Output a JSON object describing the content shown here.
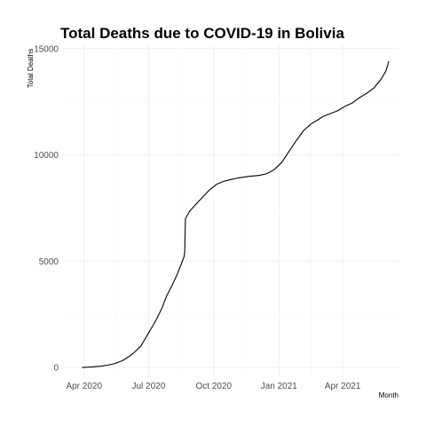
{
  "chart_data": {
    "type": "line",
    "title": "Total Deaths due to COVID-19 in Bolivia",
    "xlabel": "Month",
    "ylabel": "Total Deaths",
    "x_axis_type": "date",
    "xlim": [
      "2020-03-01",
      "2021-06-20"
    ],
    "ylim": [
      -500,
      15200
    ],
    "x_ticks": [
      {
        "date": "2020-04-01",
        "label": "Apr 2020"
      },
      {
        "date": "2020-07-01",
        "label": "Jul 2020"
      },
      {
        "date": "2020-10-01",
        "label": "Oct 2020"
      },
      {
        "date": "2021-01-01",
        "label": "Jan 2021"
      },
      {
        "date": "2021-04-01",
        "label": "Apr 2021"
      }
    ],
    "y_ticks": [
      0,
      5000,
      10000,
      15000
    ],
    "grid": true,
    "series": [
      {
        "color": "#000000",
        "points": [
          [
            "2020-03-29",
            0
          ],
          [
            "2020-04-10",
            20
          ],
          [
            "2020-04-25",
            60
          ],
          [
            "2020-05-05",
            110
          ],
          [
            "2020-05-15",
            190
          ],
          [
            "2020-05-25",
            320
          ],
          [
            "2020-06-01",
            460
          ],
          [
            "2020-06-10",
            680
          ],
          [
            "2020-06-20",
            1000
          ],
          [
            "2020-06-28",
            1450
          ],
          [
            "2020-07-05",
            1850
          ],
          [
            "2020-07-12",
            2250
          ],
          [
            "2020-07-20",
            2800
          ],
          [
            "2020-07-27",
            3400
          ],
          [
            "2020-08-03",
            3850
          ],
          [
            "2020-08-10",
            4350
          ],
          [
            "2020-08-16",
            4850
          ],
          [
            "2020-08-20",
            5200
          ],
          [
            "2020-08-21",
            5400
          ],
          [
            "2020-08-22",
            7000
          ],
          [
            "2020-08-28",
            7350
          ],
          [
            "2020-09-05",
            7650
          ],
          [
            "2020-09-15",
            8000
          ],
          [
            "2020-09-25",
            8350
          ],
          [
            "2020-10-05",
            8620
          ],
          [
            "2020-10-15",
            8760
          ],
          [
            "2020-10-25",
            8840
          ],
          [
            "2020-11-05",
            8920
          ],
          [
            "2020-11-20",
            8990
          ],
          [
            "2020-12-05",
            9040
          ],
          [
            "2020-12-15",
            9120
          ],
          [
            "2020-12-25",
            9300
          ],
          [
            "2021-01-05",
            9650
          ],
          [
            "2021-01-15",
            10150
          ],
          [
            "2021-01-25",
            10650
          ],
          [
            "2021-02-05",
            11150
          ],
          [
            "2021-02-15",
            11450
          ],
          [
            "2021-02-25",
            11650
          ],
          [
            "2021-03-05",
            11820
          ],
          [
            "2021-03-15",
            11950
          ],
          [
            "2021-03-25",
            12080
          ],
          [
            "2021-04-05",
            12300
          ],
          [
            "2021-04-15",
            12450
          ],
          [
            "2021-04-25",
            12700
          ],
          [
            "2021-05-05",
            12900
          ],
          [
            "2021-05-15",
            13150
          ],
          [
            "2021-05-25",
            13550
          ],
          [
            "2021-06-01",
            13950
          ],
          [
            "2021-06-05",
            14400
          ]
        ]
      }
    ]
  }
}
